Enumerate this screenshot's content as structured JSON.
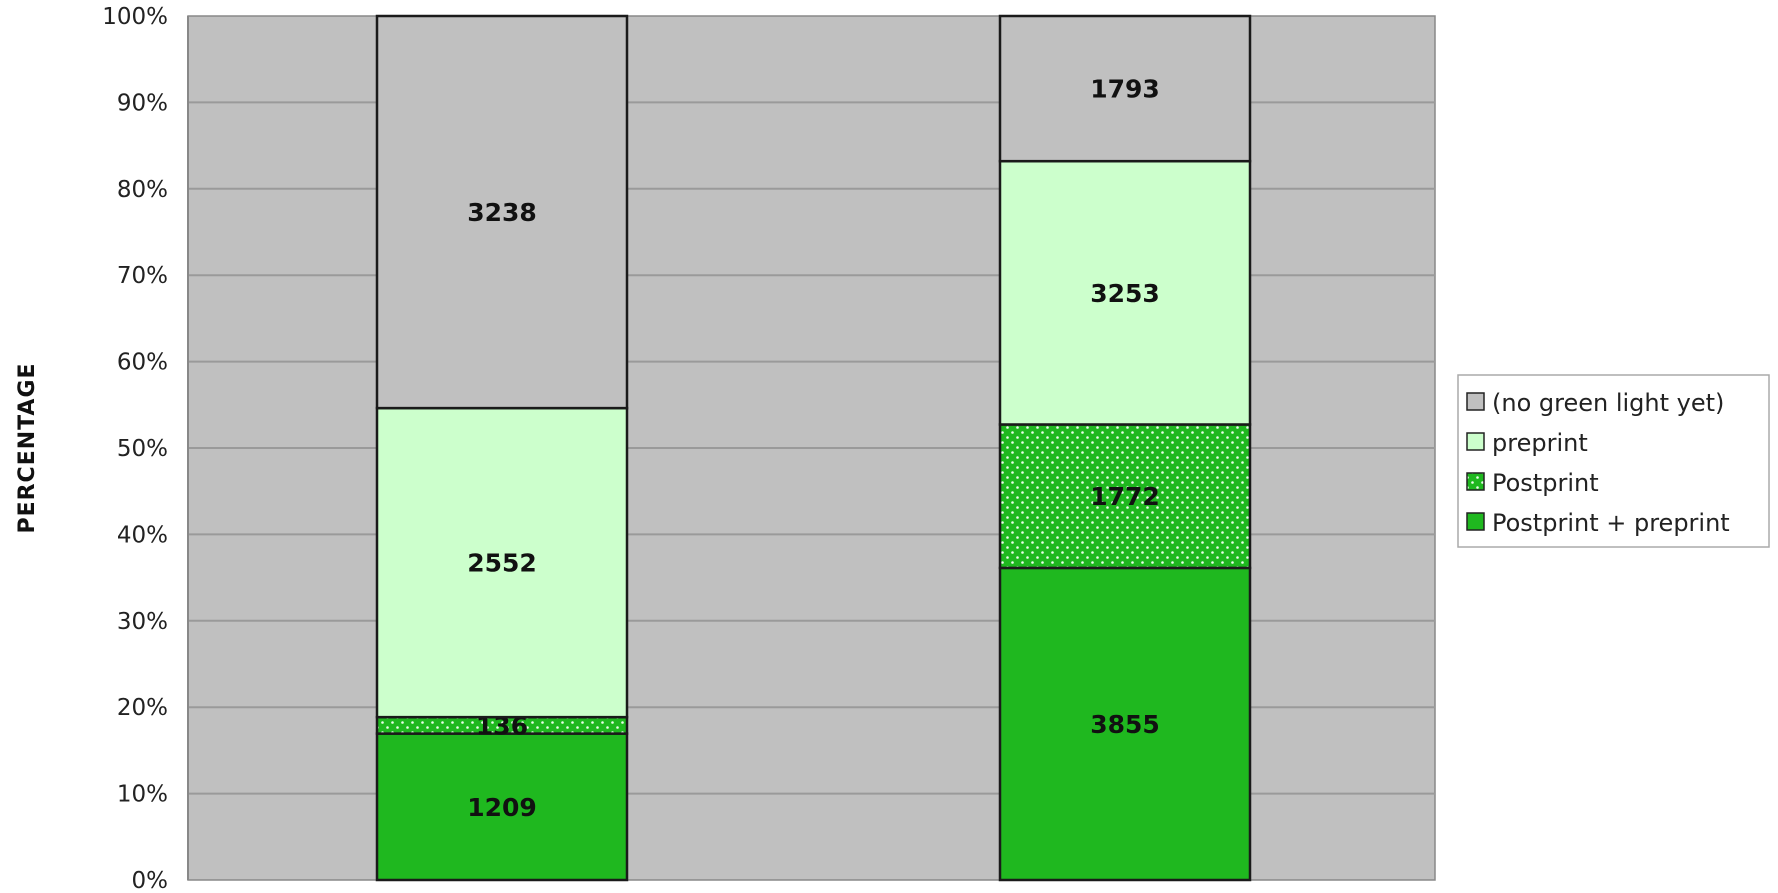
{
  "chart_data": {
    "type": "bar",
    "stacked": "percent",
    "ylabel": "PERCENTAGE",
    "xlabel": "",
    "ylim": [
      0,
      100
    ],
    "y_ticks": [
      "0%",
      "10%",
      "20%",
      "30%",
      "40%",
      "50%",
      "60%",
      "70%",
      "80%",
      "90%",
      "100%"
    ],
    "categories": [
      "",
      ""
    ],
    "grid": true,
    "legend_position": "right",
    "series": [
      {
        "name": "Postprint + preprint",
        "values": [
          1209,
          3855
        ],
        "color": "#1fb81f",
        "pattern": "solid"
      },
      {
        "name": "Postprint",
        "values": [
          136,
          1772
        ],
        "color": "#1fb81f",
        "pattern": "dotted"
      },
      {
        "name": "preprint",
        "values": [
          2552,
          3253
        ],
        "color": "#ccffcc",
        "pattern": "solid"
      },
      {
        "name": "(no green light yet)",
        "values": [
          3238,
          1793
        ],
        "color": "#c0c0c0",
        "pattern": "solid"
      }
    ],
    "legend_order": [
      "(no green light yet)",
      "preprint",
      "Postprint",
      "Postprint + preprint"
    ],
    "plot_background": "#c0c0c0",
    "grid_color": "#9a9a9a"
  }
}
